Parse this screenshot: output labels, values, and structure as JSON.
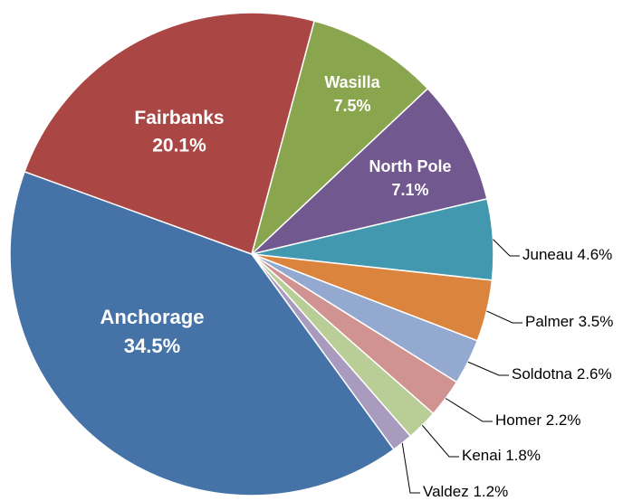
{
  "chart_data": {
    "type": "pie",
    "categories": [
      "Anchorage",
      "Fairbanks",
      "Wasilla",
      "North Pole",
      "Juneau",
      "Palmer",
      "Soldotna",
      "Homer",
      "Kenai",
      "Valdez"
    ],
    "values": [
      34.5,
      20.1,
      7.5,
      7.1,
      4.6,
      3.5,
      2.6,
      2.2,
      1.8,
      1.2
    ],
    "value_labels": [
      "34.5%",
      "20.1%",
      "7.5%",
      "7.1%",
      "4.6%",
      "3.5%",
      "2.6%",
      "2.2%",
      "1.8%",
      "1.2%"
    ],
    "colors": [
      "#4572a7",
      "#aa4643",
      "#89a54e",
      "#71588f",
      "#4198af",
      "#db843d",
      "#93a9cf",
      "#d19392",
      "#b9cd96",
      "#a99bbd"
    ]
  }
}
